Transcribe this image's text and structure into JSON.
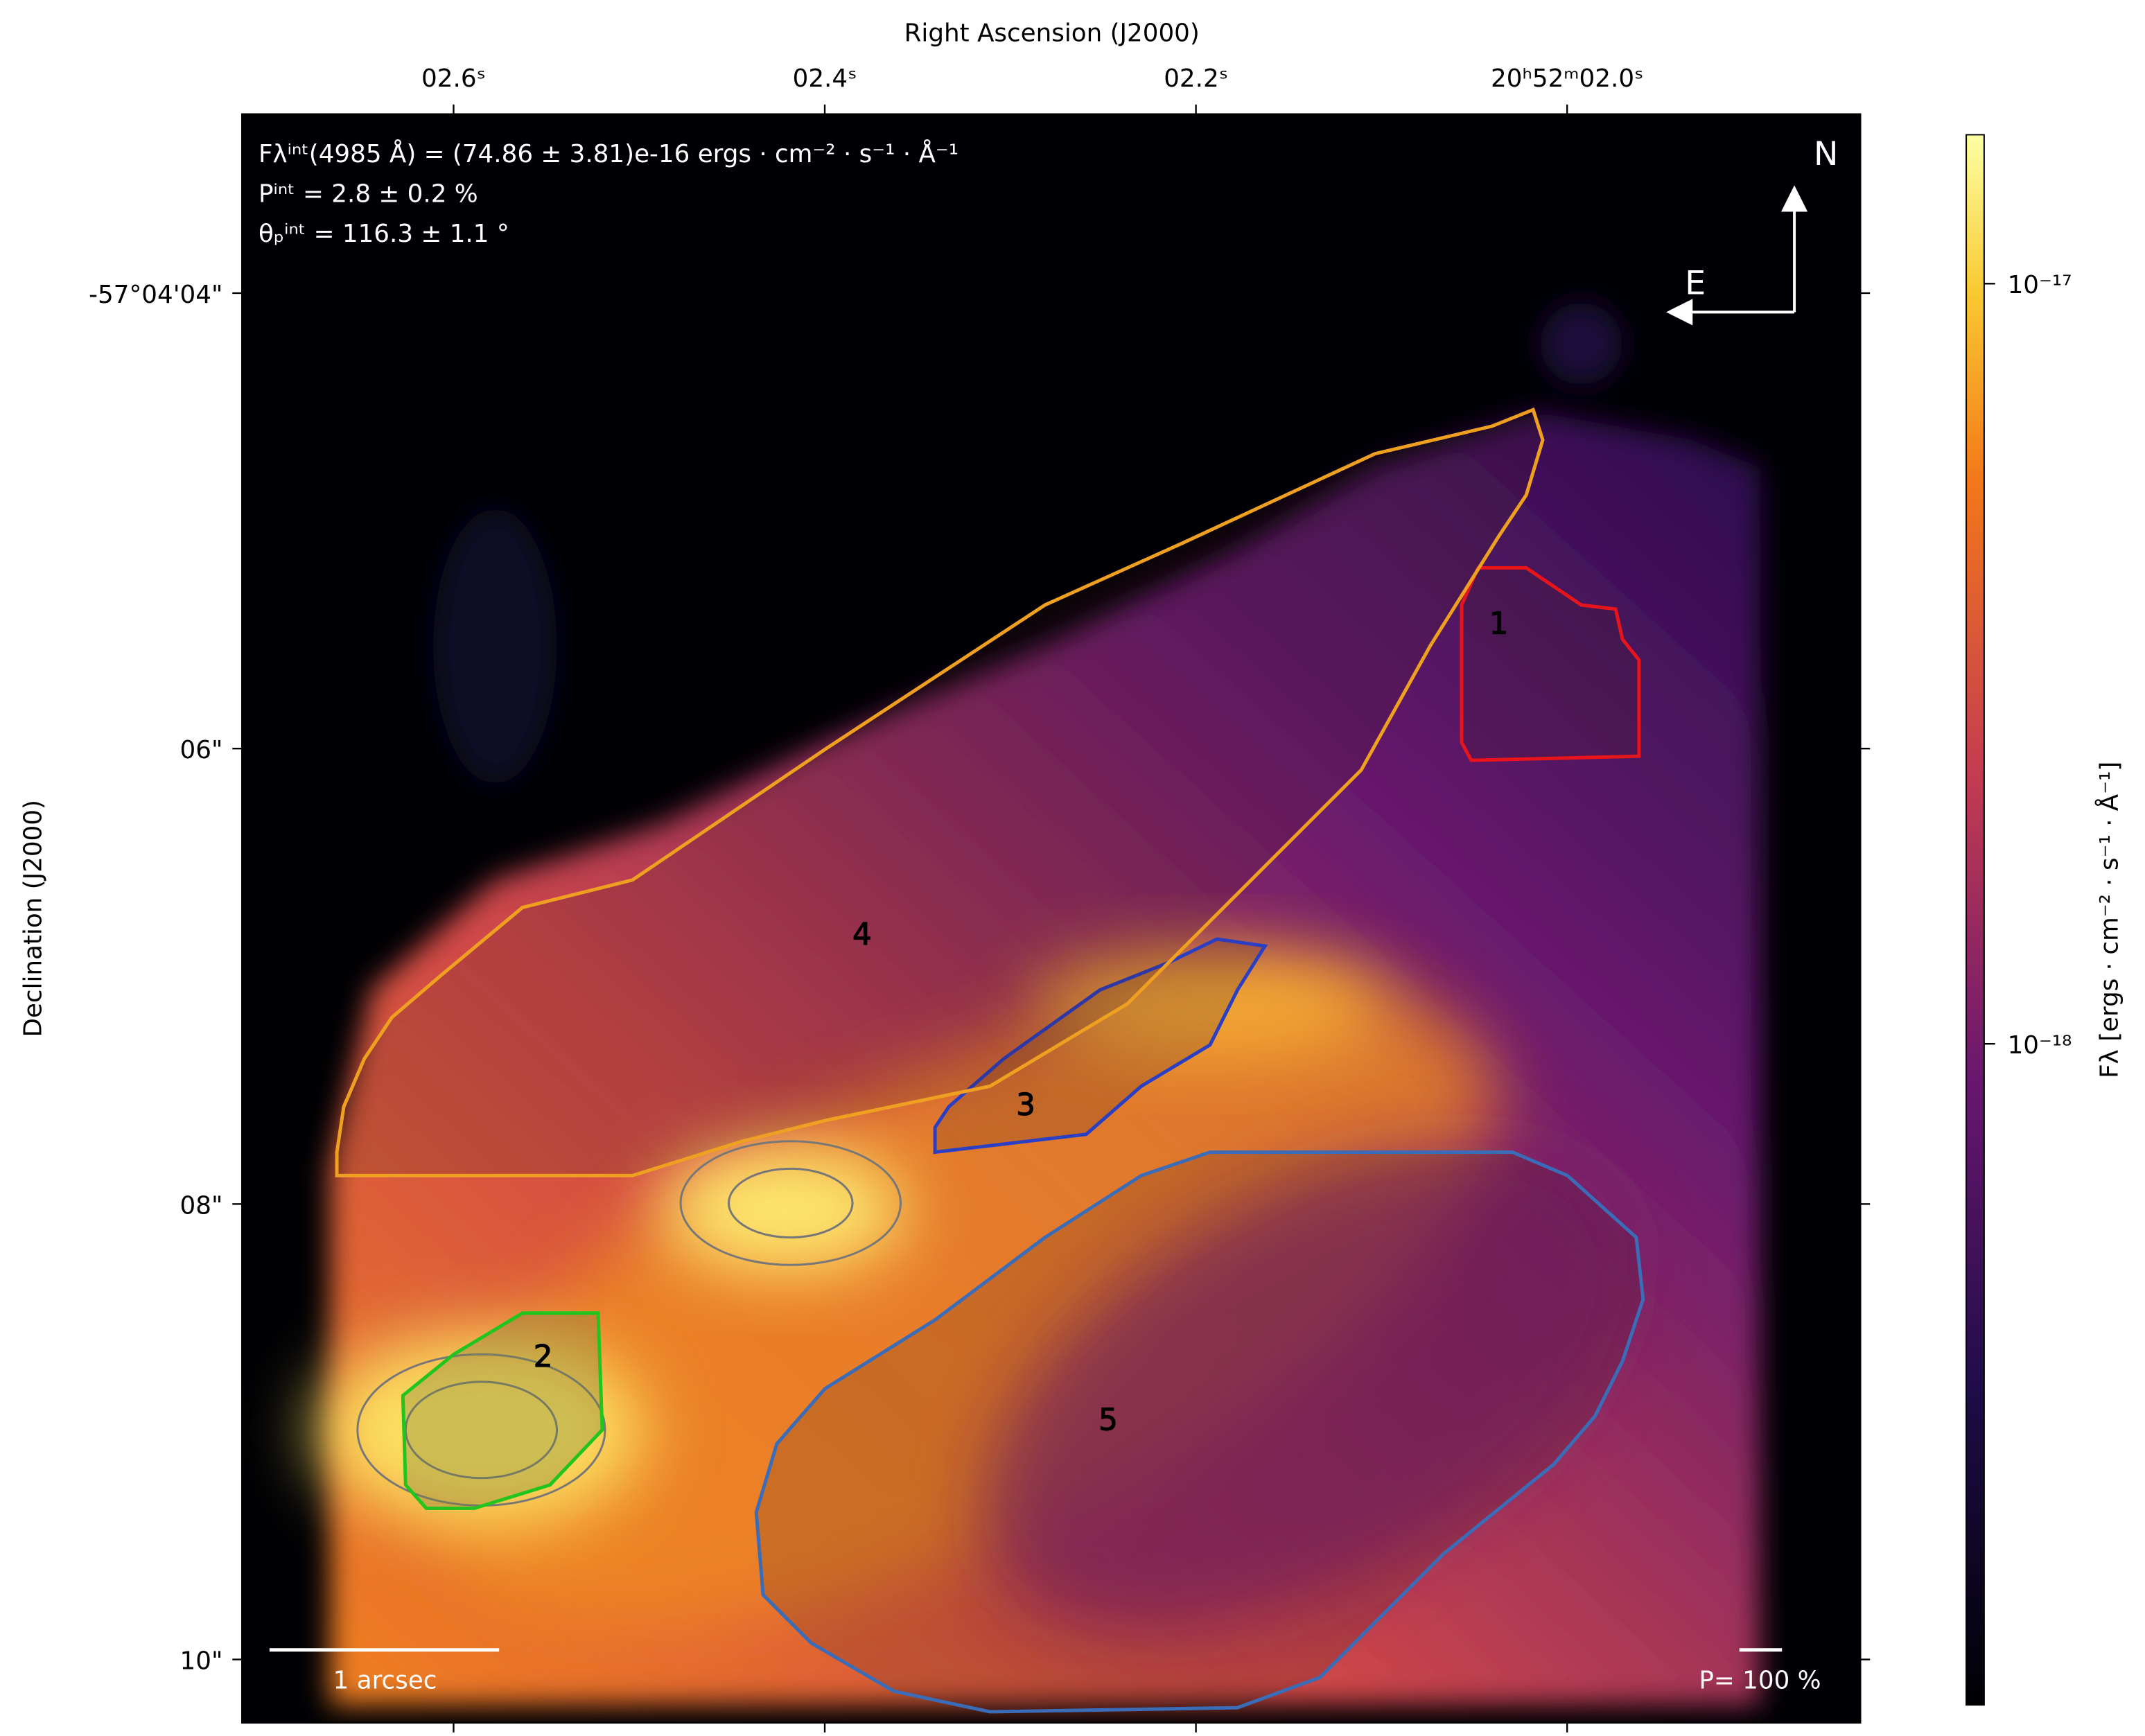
{
  "chart_data": {
    "type": "image",
    "x_label": "Right Ascension (J2000)",
    "y_label": "Declination (J2000)",
    "xlim": [
      2.714,
      1.842
    ],
    "xticks": [
      {
        "value": 2.6,
        "label": "02.6ˢ"
      },
      {
        "value": 2.4,
        "label": "02.4ˢ"
      },
      {
        "value": 2.2,
        "label": "02.2ˢ"
      },
      {
        "value": 2.0,
        "label": "20ʰ52ᵐ02.0ˢ"
      }
    ],
    "ylim": [
      10.278,
      3.214
    ],
    "yticks": [
      {
        "value": 4,
        "label": "-57°04'04\""
      },
      {
        "value": 6,
        "label": "06\""
      },
      {
        "value": 8,
        "label": "08\""
      },
      {
        "value": 10,
        "label": "10\""
      }
    ],
    "colorbar": {
      "label": "Fλ [ergs · cm⁻² · s⁻¹ · Å⁻¹]",
      "scale": "log",
      "lim": [
        1.35e-19,
        1.57e-17
      ],
      "ticks": [
        {
          "value": 1e-17,
          "label": "10⁻¹⁷"
        },
        {
          "value": 1e-18,
          "label": "10⁻¹⁸"
        }
      ]
    },
    "annotations": [
      "Fλⁱⁿᵗ(4985 Å) = (74.86 ± 3.81)e-16 ergs · cm⁻² · s⁻¹ · Å⁻¹",
      "Pⁱⁿᵗ = 2.8 ± 0.2 %",
      "θₚⁱⁿᵗ = 116.3 ± 1.1 °"
    ],
    "regions": [
      {
        "label": "1",
        "color": "#e8141c"
      },
      {
        "label": "2",
        "color": "#22c41e"
      },
      {
        "label": "3",
        "color": "#2a3fc4"
      },
      {
        "label": "4",
        "color": "#f0a020"
      },
      {
        "label": "5",
        "color": "#3a6cb8"
      }
    ],
    "compass": {
      "north": "N",
      "east": "E"
    },
    "scale_bar": "1 arcsec",
    "polarization_scale": "P= 100 %"
  }
}
